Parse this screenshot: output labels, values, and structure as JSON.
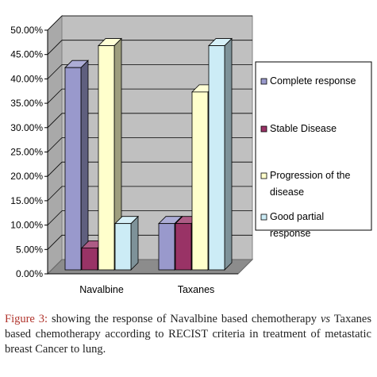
{
  "chart_data": {
    "type": "bar",
    "style": "3d-clustered-column",
    "categories": [
      "Navalbine",
      "Taxanes"
    ],
    "series": [
      {
        "name": "Complete response",
        "color": "#9999cc",
        "values": [
          41.5,
          9.5
        ]
      },
      {
        "name": "Stable Disease",
        "color": "#993366",
        "values": [
          4.5,
          9.5
        ]
      },
      {
        "name": "Progression of the disease",
        "color": "#ffffcc",
        "values": [
          46.0,
          36.5
        ]
      },
      {
        "name": "Good partial response",
        "color": "#ccecf6",
        "values": [
          9.5,
          46.0
        ]
      }
    ],
    "yticks": [
      "0.00%",
      "5.00%",
      "10.00%",
      "15.00%",
      "20.00%",
      "25.00%",
      "30.00%",
      "35.00%",
      "40.00%",
      "45.00%",
      "50.00%"
    ],
    "ylim": [
      0,
      50
    ],
    "grid": true,
    "legend_position": "right",
    "wall_color": "#c0c0c0"
  },
  "caption": {
    "label": "Figure 3:",
    "text_before_vs": " showing the response of Navalbine based chemotherapy ",
    "vs": "vs",
    "text_after_vs": " Taxanes based chemotherapy according to RECIST criteria in treatment of metastatic breast Cancer to lung."
  }
}
